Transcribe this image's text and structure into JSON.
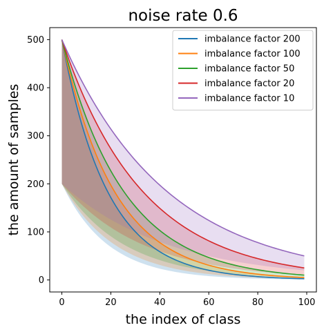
{
  "chart_data": {
    "type": "line",
    "title": "noise rate 0.6",
    "xlabel": "the index of class",
    "ylabel": "the amount of samples",
    "xlim": [
      -4.95,
      103.95
    ],
    "ylim": [
      -25,
      525
    ],
    "xticks": [
      0,
      20,
      40,
      60,
      80,
      100
    ],
    "yticks": [
      0,
      100,
      200,
      300,
      400,
      500
    ],
    "grid": false,
    "legend_position": "top-right",
    "x_range": [
      0,
      99
    ],
    "series": [
      {
        "name": "imbalance factor 200",
        "color": "#1f77b4",
        "imbalance_factor": 200,
        "line": {
          "start": 500,
          "end": 2.5
        },
        "band": {
          "upper_start": 500,
          "upper_end": 2.5,
          "lower_start": 200,
          "lower_end": 1.0
        }
      },
      {
        "name": "imbalance factor 100",
        "color": "#ff7f0e",
        "imbalance_factor": 100,
        "line": {
          "start": 500,
          "end": 5
        },
        "band": {
          "upper_start": 500,
          "upper_end": 5,
          "lower_start": 200,
          "lower_end": 2
        }
      },
      {
        "name": "imbalance factor 50",
        "color": "#2ca02c",
        "imbalance_factor": 50,
        "line": {
          "start": 500,
          "end": 10
        },
        "band": {
          "upper_start": 500,
          "upper_end": 10,
          "lower_start": 200,
          "lower_end": 4
        }
      },
      {
        "name": "imbalance factor 20",
        "color": "#d62728",
        "imbalance_factor": 20,
        "line": {
          "start": 500,
          "end": 25
        },
        "band": {
          "upper_start": 500,
          "upper_end": 25,
          "lower_start": 200,
          "lower_end": 10
        }
      },
      {
        "name": "imbalance factor 10",
        "color": "#9467bd",
        "imbalance_factor": 10,
        "line": {
          "start": 500,
          "end": 50
        },
        "band": {
          "upper_start": 500,
          "upper_end": 50,
          "lower_start": 200,
          "lower_end": 20
        }
      }
    ]
  }
}
